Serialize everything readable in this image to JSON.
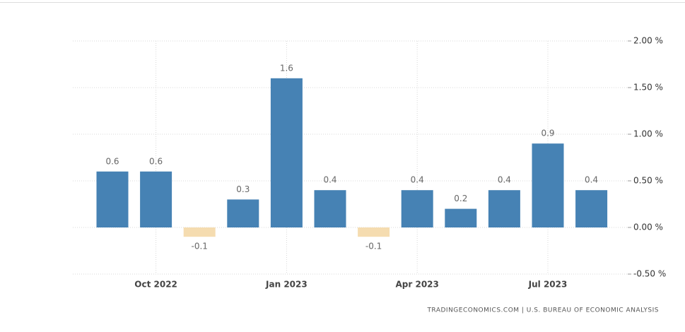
{
  "chart_data": {
    "type": "bar",
    "categories": [
      null,
      "Oct 2022",
      null,
      null,
      "Jan 2023",
      null,
      null,
      "Apr 2023",
      null,
      null,
      "Jul 2023",
      null
    ],
    "values": [
      0.6,
      0.6,
      -0.1,
      0.3,
      1.6,
      0.4,
      -0.1,
      0.4,
      0.2,
      0.4,
      0.9,
      0.4
    ],
    "color": "#4682b4",
    "negative_color": "#f5dcb0",
    "ylim": [
      -0.5,
      2
    ],
    "yticks": [
      {
        "value": 2,
        "label": "2.00 %"
      },
      {
        "value": 1.5,
        "label": "1.50 %"
      },
      {
        "value": 1,
        "label": "1.00 %"
      },
      {
        "value": 0.5,
        "label": "0.50 %"
      },
      {
        "value": 0,
        "label": "0.00 %"
      },
      {
        "value": -0.5,
        "label": "-0.50 %"
      }
    ],
    "grid": true,
    "source": "TRADINGECONOMICS.COM | U.S. BUREAU OF ECONOMIC ANALYSIS"
  }
}
